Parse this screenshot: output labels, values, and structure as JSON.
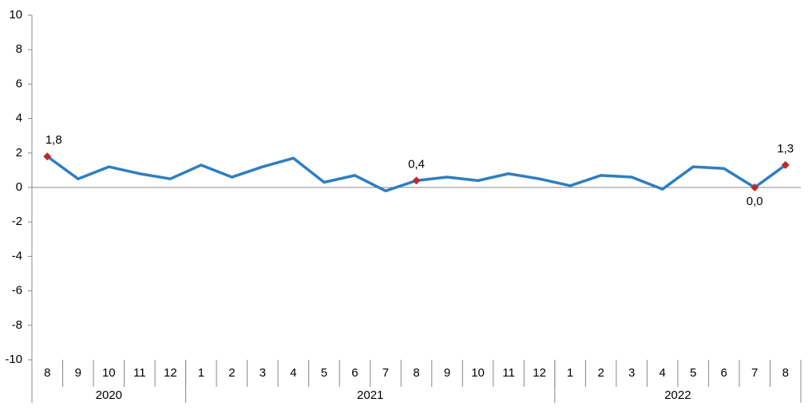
{
  "chart_data": {
    "type": "line",
    "categories": [
      "8",
      "9",
      "10",
      "11",
      "12",
      "1",
      "2",
      "3",
      "4",
      "5",
      "6",
      "7",
      "8",
      "9",
      "10",
      "11",
      "12",
      "1",
      "2",
      "3",
      "4",
      "5",
      "6",
      "7",
      "8"
    ],
    "x_groups": [
      {
        "label": "2020",
        "count": 5
      },
      {
        "label": "2021",
        "count": 12
      },
      {
        "label": "2022",
        "count": 8
      }
    ],
    "series": [
      {
        "color": "#2e7ebf",
        "marker_color": "#c0282a",
        "values": [
          1.8,
          0.5,
          1.2,
          0.8,
          0.5,
          1.3,
          0.6,
          1.2,
          1.7,
          0.3,
          0.7,
          -0.2,
          0.4,
          0.6,
          0.4,
          0.8,
          0.5,
          0.1,
          0.7,
          0.6,
          -0.1,
          1.2,
          1.1,
          0.0,
          1.3
        ],
        "value_labels": [
          "1,8",
          null,
          null,
          null,
          null,
          null,
          null,
          null,
          null,
          null,
          null,
          null,
          "0,4",
          null,
          null,
          null,
          null,
          null,
          null,
          null,
          null,
          null,
          null,
          "0,0",
          "1,3"
        ]
      }
    ],
    "ylim": [
      -10,
      10
    ],
    "yticks": [
      -10,
      -8,
      -6,
      -4,
      -2,
      0,
      2,
      4,
      6,
      8,
      10
    ],
    "grid": false
  }
}
